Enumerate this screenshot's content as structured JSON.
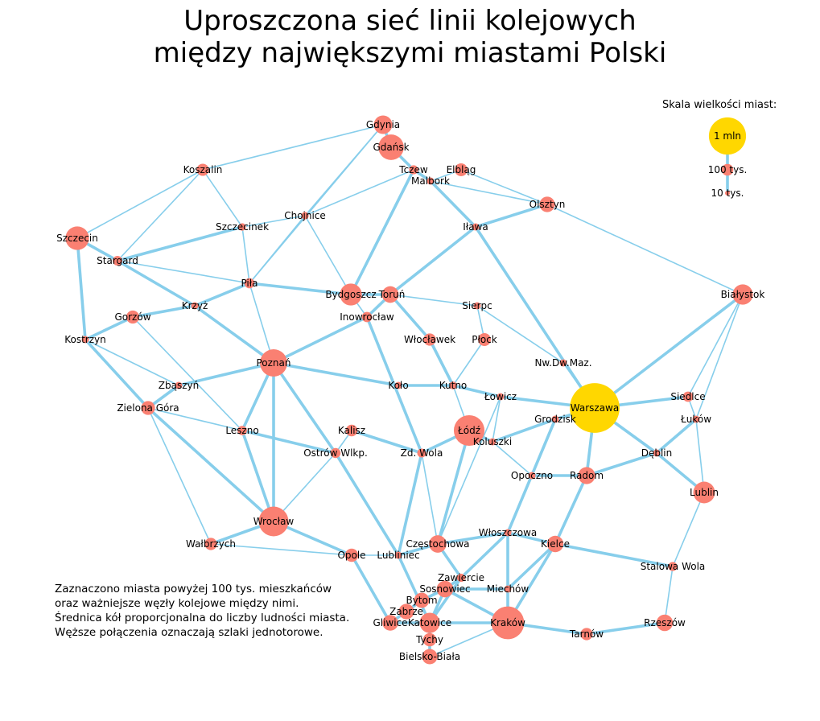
{
  "title": {
    "line1": "Uproszczona sieć linii kolejowych",
    "line2": "między największymi miastami Polski"
  },
  "note": {
    "line1": "Zaznaczono miasta powyżej 100 tys. mieszkańców",
    "line2": "oraz ważniejsze węzły kolejowe między nimi.",
    "line3": "Średnica kół proporcjonalna do liczby ludności miasta.",
    "line4": "Węższe połączenia oznaczają szlaki jednotorowe."
  },
  "legend": {
    "title": "Skala wielkości miast:",
    "items": [
      {
        "label": "1 mln",
        "population": 1000
      },
      {
        "label": "100 tys.",
        "population": 100
      },
      {
        "label": "10 tys.",
        "population": 10
      }
    ]
  },
  "colors": {
    "city": "#fa8072",
    "capital": "#ffd700",
    "track": "#87ceeb"
  },
  "cities": [
    {
      "id": "gdynia",
      "name": "Gdynia",
      "pop": 246
    },
    {
      "id": "gdansk",
      "name": "Gdańsk",
      "pop": 470
    },
    {
      "id": "koszalin",
      "name": "Koszalin",
      "pop": 107
    },
    {
      "id": "tczew",
      "name": "Tczew",
      "pop": 60
    },
    {
      "id": "elblag",
      "name": "Elbląg",
      "pop": 119
    },
    {
      "id": "malbork",
      "name": "Malbork",
      "pop": 38
    },
    {
      "id": "olsztyn",
      "name": "Olsztyn",
      "pop": 172
    },
    {
      "id": "szczecin",
      "name": "Szczecin",
      "pop": 400
    },
    {
      "id": "chojnice",
      "name": "Chojnice",
      "pop": 40
    },
    {
      "id": "szczecinek",
      "name": "Szczecinek",
      "pop": 40
    },
    {
      "id": "ilawa",
      "name": "Iława",
      "pop": 33
    },
    {
      "id": "stargard",
      "name": "Stargard",
      "pop": 68
    },
    {
      "id": "pila",
      "name": "Piła",
      "pop": 74
    },
    {
      "id": "bydgoszcz",
      "name": "Bydgoszcz",
      "pop": 350
    },
    {
      "id": "torun",
      "name": "Toruń",
      "pop": 200
    },
    {
      "id": "bialystok",
      "name": "Białystok",
      "pop": 297
    },
    {
      "id": "sierpc",
      "name": "Sierpc",
      "pop": 18
    },
    {
      "id": "krzyz",
      "name": "Krzyż",
      "pop": 6
    },
    {
      "id": "gorzow",
      "name": "Gorzów",
      "pop": 124
    },
    {
      "id": "inowroclaw",
      "name": "Inowrocław",
      "pop": 75
    },
    {
      "id": "kostrzyn",
      "name": "Kostrzyn",
      "pop": 18
    },
    {
      "id": "wloclawek",
      "name": "Włocławek",
      "pop": 110
    },
    {
      "id": "plock",
      "name": "Płock",
      "pop": 120
    },
    {
      "id": "poznan",
      "name": "Poznań",
      "pop": 540
    },
    {
      "id": "nwdwmaz",
      "name": "Nw.Dw.Maz.",
      "pop": 28
    },
    {
      "id": "zbaszyn",
      "name": "Zbąszyń",
      "pop": 7
    },
    {
      "id": "kolo",
      "name": "Koło",
      "pop": 22
    },
    {
      "id": "kutno",
      "name": "Kutno",
      "pop": 44
    },
    {
      "id": "lowicz",
      "name": "Łowicz",
      "pop": 28
    },
    {
      "id": "warszawa",
      "name": "Warszawa",
      "pop": 1790
    },
    {
      "id": "siedlce",
      "name": "Siedlce",
      "pop": 77
    },
    {
      "id": "zielonagora",
      "name": "Zielona Góra",
      "pop": 140
    },
    {
      "id": "grodzisk",
      "name": "Grodzisk",
      "pop": 30
    },
    {
      "id": "lukow",
      "name": "Łuków",
      "pop": 30
    },
    {
      "id": "leszno",
      "name": "Leszno",
      "pop": 63
    },
    {
      "id": "kalisz",
      "name": "Kalisz",
      "pop": 100
    },
    {
      "id": "lodz",
      "name": "Łódź",
      "pop": 680
    },
    {
      "id": "koluszki",
      "name": "Koluszki",
      "pop": 13
    },
    {
      "id": "ostrow",
      "name": "Ostrów Wlkp.",
      "pop": 72
    },
    {
      "id": "zdwola",
      "name": "Zd. Wola",
      "pop": 57
    },
    {
      "id": "deblin",
      "name": "Dęblin",
      "pop": 16
    },
    {
      "id": "opoczno",
      "name": "Opoczno",
      "pop": 21
    },
    {
      "id": "radom",
      "name": "Radom",
      "pop": 210
    },
    {
      "id": "lublin",
      "name": "Lublin",
      "pop": 340
    },
    {
      "id": "wroclaw",
      "name": "Wrocław",
      "pop": 640
    },
    {
      "id": "walbrzych",
      "name": "Wałbrzych",
      "pop": 110
    },
    {
      "id": "wloszczowa",
      "name": "Włoszczowa",
      "pop": 10
    },
    {
      "id": "czestochowa",
      "name": "Częstochowa",
      "pop": 220
    },
    {
      "id": "kielce",
      "name": "Kielce",
      "pop": 195
    },
    {
      "id": "opole",
      "name": "Opole",
      "pop": 128
    },
    {
      "id": "lubliniec",
      "name": "Lubliniec",
      "pop": 24
    },
    {
      "id": "stalowawola",
      "name": "Stalowa Wola",
      "pop": 60
    },
    {
      "id": "zawiercie",
      "name": "Zawiercie",
      "pop": 50
    },
    {
      "id": "sosnowiec",
      "name": "Sosnowiec",
      "pop": 200
    },
    {
      "id": "miechow",
      "name": "Miechów",
      "pop": 12
    },
    {
      "id": "bytom",
      "name": "Bytom",
      "pop": 166
    },
    {
      "id": "zabrze",
      "name": "Zabrze",
      "pop": 173
    },
    {
      "id": "gliwice",
      "name": "Gliwice",
      "pop": 180
    },
    {
      "id": "katowice",
      "name": "Katowice",
      "pop": 295
    },
    {
      "id": "krakow",
      "name": "Kraków",
      "pop": 780
    },
    {
      "id": "tarnow",
      "name": "Tarnów",
      "pop": 108
    },
    {
      "id": "rzeszow",
      "name": "Rzeszów",
      "pop": 196
    },
    {
      "id": "tychy",
      "name": "Tychy",
      "pop": 127
    },
    {
      "id": "bielsko",
      "name": "Bielsko-Biała",
      "pop": 170
    }
  ],
  "links": [
    {
      "from": "gdansk",
      "to": "gdynia",
      "double": true
    },
    {
      "from": "gdansk",
      "to": "tczew",
      "double": true
    },
    {
      "from": "tczew",
      "to": "malbork",
      "double": true
    },
    {
      "from": "malbork",
      "to": "elblag",
      "double": false
    },
    {
      "from": "elblag",
      "to": "olsztyn",
      "double": false
    },
    {
      "from": "malbork",
      "to": "olsztyn",
      "double": false
    },
    {
      "from": "malbork",
      "to": "ilawa",
      "double": true
    },
    {
      "from": "ilawa",
      "to": "olsztyn",
      "double": true
    },
    {
      "from": "ilawa",
      "to": "torun",
      "double": true
    },
    {
      "from": "ilawa",
      "to": "warszawa",
      "double": true
    },
    {
      "from": "olsztyn",
      "to": "bialystok",
      "double": false
    },
    {
      "from": "bialystok",
      "to": "warszawa",
      "double": true
    },
    {
      "from": "bialystok",
      "to": "siedlce",
      "double": false
    },
    {
      "from": "bialystok",
      "to": "lukow",
      "double": false
    },
    {
      "from": "gdynia",
      "to": "koszalin",
      "double": false
    },
    {
      "from": "gdynia",
      "to": "chojnice",
      "double": false
    },
    {
      "from": "gdynia",
      "to": "pila",
      "double": false
    },
    {
      "from": "tczew",
      "to": "chojnice",
      "double": false
    },
    {
      "from": "tczew",
      "to": "bydgoszcz",
      "double": true
    },
    {
      "from": "koszalin",
      "to": "szczecin",
      "double": false
    },
    {
      "from": "koszalin",
      "to": "stargard",
      "double": false
    },
    {
      "from": "koszalin",
      "to": "szczecinek",
      "double": false
    },
    {
      "from": "szczecin",
      "to": "stargard",
      "double": true
    },
    {
      "from": "szczecin",
      "to": "kostrzyn",
      "double": true
    },
    {
      "from": "stargard",
      "to": "szczecinek",
      "double": true
    },
    {
      "from": "stargard",
      "to": "krzyz",
      "double": true
    },
    {
      "from": "stargard",
      "to": "pila",
      "double": false
    },
    {
      "from": "szczecinek",
      "to": "chojnice",
      "double": false
    },
    {
      "from": "szczecinek",
      "to": "pila",
      "double": false
    },
    {
      "from": "chojnice",
      "to": "pila",
      "double": false
    },
    {
      "from": "chojnice",
      "to": "bydgoszcz",
      "double": false
    },
    {
      "from": "pila",
      "to": "bydgoszcz",
      "double": true
    },
    {
      "from": "pila",
      "to": "krzyz",
      "double": true
    },
    {
      "from": "pila",
      "to": "poznan",
      "double": false
    },
    {
      "from": "krzyz",
      "to": "poznan",
      "double": true
    },
    {
      "from": "krzyz",
      "to": "gorzow",
      "double": true
    },
    {
      "from": "gorzow",
      "to": "kostrzyn",
      "double": true
    },
    {
      "from": "gorzow",
      "to": "leszno",
      "double": false
    },
    {
      "from": "kostrzyn",
      "to": "zbaszyn",
      "double": false
    },
    {
      "from": "kostrzyn",
      "to": "zielonagora",
      "double": true
    },
    {
      "from": "zbaszyn",
      "to": "poznan",
      "double": true
    },
    {
      "from": "zbaszyn",
      "to": "zielonagora",
      "double": true
    },
    {
      "from": "zielonagora",
      "to": "leszno",
      "double": false
    },
    {
      "from": "zielonagora",
      "to": "wroclaw",
      "double": true
    },
    {
      "from": "zielonagora",
      "to": "walbrzych",
      "double": false
    },
    {
      "from": "bydgoszcz",
      "to": "torun",
      "double": true
    },
    {
      "from": "bydgoszcz",
      "to": "inowroclaw",
      "double": false
    },
    {
      "from": "torun",
      "to": "inowroclaw",
      "double": true
    },
    {
      "from": "torun",
      "to": "sierpc",
      "double": false
    },
    {
      "from": "torun",
      "to": "wloclawek",
      "double": true
    },
    {
      "from": "sierpc",
      "to": "nwdwmaz",
      "double": false
    },
    {
      "from": "sierpc",
      "to": "plock",
      "double": false
    },
    {
      "from": "inowroclaw",
      "to": "poznan",
      "double": true
    },
    {
      "from": "inowroclaw",
      "to": "zdwola",
      "double": true
    },
    {
      "from": "wloclawek",
      "to": "kutno",
      "double": true
    },
    {
      "from": "plock",
      "to": "kutno",
      "double": false
    },
    {
      "from": "nwdwmaz",
      "to": "warszawa",
      "double": false
    },
    {
      "from": "poznan",
      "to": "kolo",
      "double": true
    },
    {
      "from": "kolo",
      "to": "kutno",
      "double": true
    },
    {
      "from": "kutno",
      "to": "lowicz",
      "double": true
    },
    {
      "from": "kutno",
      "to": "lodz",
      "double": false
    },
    {
      "from": "lowicz",
      "to": "warszawa",
      "double": true
    },
    {
      "from": "lowicz",
      "to": "koluszki",
      "double": false
    },
    {
      "from": "lowicz",
      "to": "czestochowa",
      "double": false
    },
    {
      "from": "warszawa",
      "to": "siedlce",
      "double": true
    },
    {
      "from": "warszawa",
      "to": "grodzisk",
      "double": true
    },
    {
      "from": "warszawa",
      "to": "radom",
      "double": true
    },
    {
      "from": "warszawa",
      "to": "deblin",
      "double": true
    },
    {
      "from": "siedlce",
      "to": "lukow",
      "double": false
    },
    {
      "from": "lukow",
      "to": "deblin",
      "double": true
    },
    {
      "from": "lukow",
      "to": "lublin",
      "double": false
    },
    {
      "from": "deblin",
      "to": "lublin",
      "double": true
    },
    {
      "from": "deblin",
      "to": "radom",
      "double": true
    },
    {
      "from": "grodzisk",
      "to": "koluszki",
      "double": true
    },
    {
      "from": "grodzisk",
      "to": "opoczno",
      "double": false
    },
    {
      "from": "grodzisk",
      "to": "wloszczowa",
      "double": true
    },
    {
      "from": "koluszki",
      "to": "lodz",
      "double": true
    },
    {
      "from": "koluszki",
      "to": "opoczno",
      "double": false
    },
    {
      "from": "opoczno",
      "to": "radom",
      "double": true
    },
    {
      "from": "radom",
      "to": "kielce",
      "double": true
    },
    {
      "from": "kielce",
      "to": "wloszczowa",
      "double": true
    },
    {
      "from": "kielce",
      "to": "miechow",
      "double": true
    },
    {
      "from": "kielce",
      "to": "krakow",
      "double": true
    },
    {
      "from": "kielce",
      "to": "stalowawola",
      "double": true
    },
    {
      "from": "lublin",
      "to": "stalowawola",
      "double": false
    },
    {
      "from": "stalowawola",
      "to": "rzeszow",
      "double": false
    },
    {
      "from": "rzeszow",
      "to": "tarnow",
      "double": true
    },
    {
      "from": "tarnow",
      "to": "krakow",
      "double": true
    },
    {
      "from": "krakow",
      "to": "miechow",
      "double": true
    },
    {
      "from": "krakow",
      "to": "sosnowiec",
      "double": true
    },
    {
      "from": "krakow",
      "to": "katowice",
      "double": true
    },
    {
      "from": "krakow",
      "to": "bielsko",
      "double": false
    },
    {
      "from": "miechow",
      "to": "wloszczowa",
      "double": true
    },
    {
      "from": "miechow",
      "to": "sosnowiec",
      "double": true
    },
    {
      "from": "wloszczowa",
      "to": "czestochowa",
      "double": true
    },
    {
      "from": "wloszczowa",
      "to": "zawiercie",
      "double": true
    },
    {
      "from": "czestochowa",
      "to": "lodz",
      "double": true
    },
    {
      "from": "czestochowa",
      "to": "zawiercie",
      "double": true
    },
    {
      "from": "czestochowa",
      "to": "lubliniec",
      "double": true
    },
    {
      "from": "czestochowa",
      "to": "zdwola",
      "double": false
    },
    {
      "from": "zawiercie",
      "to": "sosnowiec",
      "double": true
    },
    {
      "from": "zawiercie",
      "to": "katowice",
      "double": true
    },
    {
      "from": "sosnowiec",
      "to": "katowice",
      "double": true
    },
    {
      "from": "sosnowiec",
      "to": "bytom",
      "double": true
    },
    {
      "from": "bytom",
      "to": "zabrze",
      "double": true
    },
    {
      "from": "zabrze",
      "to": "gliwice",
      "double": true
    },
    {
      "from": "gliwice",
      "to": "katowice",
      "double": true
    },
    {
      "from": "gliwice",
      "to": "opole",
      "double": true
    },
    {
      "from": "katowice",
      "to": "tychy",
      "double": true
    },
    {
      "from": "tychy",
      "to": "bielsko",
      "double": true
    },
    {
      "from": "katowice",
      "to": "bielsko",
      "double": false
    },
    {
      "from": "katowice",
      "to": "lubliniec",
      "double": true
    },
    {
      "from": "lubliniec",
      "to": "opole",
      "double": false
    },
    {
      "from": "lubliniec",
      "to": "zdwola",
      "double": true
    },
    {
      "from": "lubliniec",
      "to": "ostrow",
      "double": true
    },
    {
      "from": "ostrow",
      "to": "kalisz",
      "double": false
    },
    {
      "from": "kalisz",
      "to": "zdwola",
      "double": true
    },
    {
      "from": "zdwola",
      "to": "lodz",
      "double": true
    },
    {
      "from": "ostrow",
      "to": "poznan",
      "double": true
    },
    {
      "from": "ostrow",
      "to": "leszno",
      "double": true
    },
    {
      "from": "ostrow",
      "to": "wroclaw",
      "double": false
    },
    {
      "from": "leszno",
      "to": "poznan",
      "double": true
    },
    {
      "from": "leszno",
      "to": "wroclaw",
      "double": true
    },
    {
      "from": "poznan",
      "to": "wroclaw",
      "double": true
    },
    {
      "from": "wroclaw",
      "to": "walbrzych",
      "double": true
    },
    {
      "from": "wroclaw",
      "to": "opole",
      "double": true
    },
    {
      "from": "walbrzych",
      "to": "opole",
      "double": false
    }
  ]
}
